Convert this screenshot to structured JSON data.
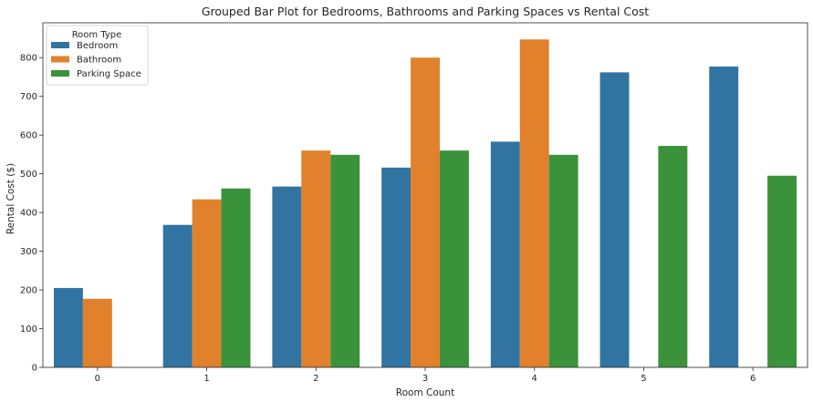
{
  "chart_data": {
    "type": "bar",
    "title": "Grouped Bar Plot for Bedrooms, Bathrooms and Parking Spaces vs Rental Cost",
    "xlabel": "Room Count",
    "ylabel": "Rental Cost ($)",
    "categories": [
      "0",
      "1",
      "2",
      "3",
      "4",
      "5",
      "6"
    ],
    "ylim": [
      0,
      890
    ],
    "yticks": [
      "0",
      "100",
      "200",
      "300",
      "400",
      "500",
      "600",
      "700",
      "800"
    ],
    "grid": false,
    "legend": {
      "title": "Room Type",
      "placement": "top-left"
    },
    "series": [
      {
        "name": "Bedroom",
        "color": "#3274a1",
        "values": [
          205,
          368,
          467,
          516,
          583,
          762,
          777
        ]
      },
      {
        "name": "Bathroom",
        "color": "#e1812c",
        "values": [
          177,
          434,
          560,
          800,
          847,
          null,
          null
        ]
      },
      {
        "name": "Parking Space",
        "color": "#3a923a",
        "values": [
          null,
          462,
          549,
          560,
          549,
          572,
          495
        ]
      }
    ]
  }
}
